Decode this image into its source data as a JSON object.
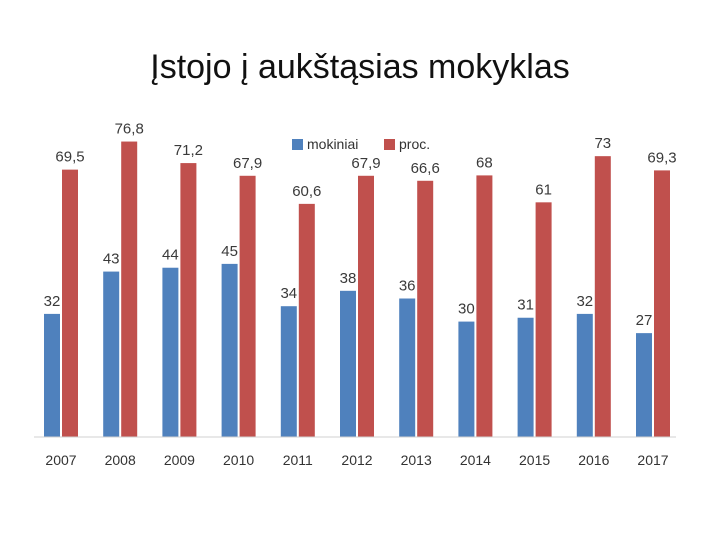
{
  "slide": {
    "title": "Įstojo į aukštąsias mokyklas"
  },
  "chart_data": {
    "type": "bar",
    "categories": [
      "2007",
      "2008",
      "2009",
      "2010",
      "2011",
      "2012",
      "2013",
      "2014",
      "2015",
      "2016",
      "2017"
    ],
    "series": [
      {
        "name": "mokiniai",
        "color": "#4f81bd",
        "values": [
          32,
          43,
          44,
          45,
          34,
          38,
          36,
          30,
          31,
          32,
          27
        ],
        "labels": [
          "32",
          "43",
          "44",
          "45",
          "34",
          "38",
          "36",
          "30",
          "31",
          "32",
          "27"
        ]
      },
      {
        "name": "proc.",
        "color": "#c0504d",
        "values": [
          69.5,
          76.8,
          71.2,
          67.9,
          60.6,
          67.9,
          66.6,
          68,
          61,
          73,
          69.3
        ],
        "labels": [
          "69,5",
          "76,8",
          "71,2",
          "67,9",
          "60,6",
          "67,9",
          "66,6",
          "68",
          "61",
          "73",
          "69,3"
        ]
      }
    ],
    "legend_position": "top-center",
    "ylim": [
      0,
      85
    ],
    "grid": false
  }
}
